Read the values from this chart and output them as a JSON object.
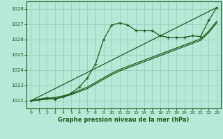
{
  "bg_color": "#b8e8d8",
  "grid_color": "#99ccbb",
  "line_color": "#1a5c1a",
  "xlim": [
    -0.5,
    23.5
  ],
  "ylim": [
    1021.5,
    1028.5
  ],
  "yticks": [
    1022,
    1023,
    1024,
    1025,
    1026,
    1027,
    1028
  ],
  "xticks": [
    0,
    1,
    2,
    3,
    4,
    5,
    6,
    7,
    8,
    9,
    10,
    11,
    12,
    13,
    14,
    15,
    16,
    17,
    18,
    19,
    20,
    21,
    22,
    23
  ],
  "xlabel": "Graphe pression niveau de la mer (hPa)",
  "series_peaked": {
    "x": [
      0,
      1,
      2,
      3,
      4,
      5,
      6,
      7,
      8,
      9,
      10,
      11,
      12,
      13,
      14,
      15,
      16,
      17,
      18,
      19,
      20,
      21,
      22,
      23
    ],
    "y": [
      1022.0,
      1022.1,
      1022.2,
      1022.1,
      1022.25,
      1022.5,
      1022.9,
      1023.5,
      1024.4,
      1026.0,
      1026.95,
      1027.1,
      1026.95,
      1026.6,
      1026.6,
      1026.6,
      1026.25,
      1026.15,
      1026.15,
      1026.15,
      1026.25,
      1026.2,
      1027.25,
      1028.1
    ]
  },
  "series_linear1": {
    "x": [
      0,
      1,
      2,
      3,
      4,
      5,
      6,
      7,
      8,
      9,
      10,
      11,
      12,
      13,
      14,
      15,
      16,
      17,
      18,
      19,
      20,
      21,
      22,
      23
    ],
    "y": [
      1022.0,
      1022.05,
      1022.1,
      1022.15,
      1022.25,
      1022.4,
      1022.6,
      1022.8,
      1023.1,
      1023.4,
      1023.7,
      1023.95,
      1024.15,
      1024.35,
      1024.55,
      1024.75,
      1024.95,
      1025.15,
      1025.35,
      1025.55,
      1025.75,
      1025.95,
      1026.45,
      1027.1
    ]
  },
  "series_linear2": {
    "x": [
      0,
      1,
      2,
      3,
      4,
      5,
      6,
      7,
      8,
      9,
      10,
      11,
      12,
      13,
      14,
      15,
      16,
      17,
      18,
      19,
      20,
      21,
      22,
      23
    ],
    "y": [
      1022.0,
      1022.07,
      1022.15,
      1022.22,
      1022.32,
      1022.47,
      1022.68,
      1022.9,
      1023.2,
      1023.5,
      1023.8,
      1024.05,
      1024.25,
      1024.45,
      1024.65,
      1024.85,
      1025.05,
      1025.25,
      1025.45,
      1025.65,
      1025.85,
      1026.05,
      1026.55,
      1027.2
    ]
  },
  "series_diagonal": {
    "x": [
      0,
      23
    ],
    "y": [
      1022.0,
      1028.1
    ]
  }
}
